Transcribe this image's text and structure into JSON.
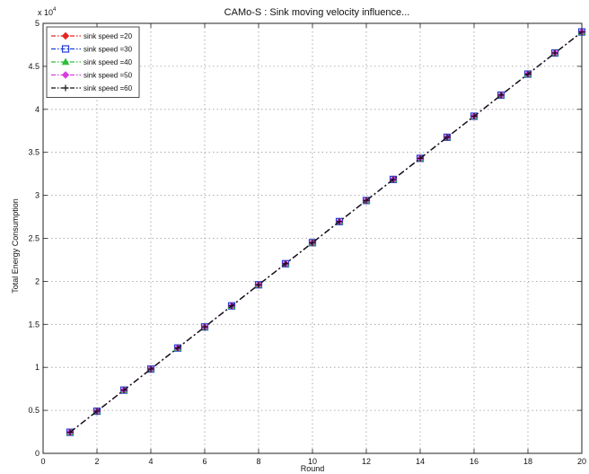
{
  "chart_data": {
    "type": "line",
    "title": "CAMo-S : Sink moving velocity influence...",
    "xlabel": "Round",
    "ylabel": "Total Energy Consumption",
    "y_multiplier": "x 10",
    "y_exponent": "4",
    "xlim": [
      0,
      20
    ],
    "ylim": [
      0,
      5
    ],
    "x_ticks": [
      0,
      2,
      4,
      6,
      8,
      10,
      12,
      14,
      16,
      18,
      20
    ],
    "y_ticks": [
      0,
      0.5,
      1,
      1.5,
      2,
      2.5,
      3,
      3.5,
      4,
      4.5,
      5
    ],
    "y_tick_labels": [
      "0",
      "0.5",
      "1",
      "1.5",
      "2",
      "2.5",
      "3",
      "3.5",
      "4",
      "4.5",
      "5"
    ],
    "grid": true,
    "legend_position": "top-left",
    "x": [
      1,
      2,
      3,
      4,
      5,
      6,
      7,
      8,
      9,
      10,
      11,
      12,
      13,
      14,
      15,
      16,
      17,
      18,
      19,
      20
    ],
    "series": [
      {
        "name": "sink speed =20",
        "color": "#e8251f",
        "marker": "diamond",
        "dash": "dash-dot",
        "values": [
          0.245,
          0.49,
          0.735,
          0.98,
          1.225,
          1.47,
          1.715,
          1.96,
          2.205,
          2.45,
          2.695,
          2.94,
          3.185,
          3.43,
          3.675,
          3.92,
          4.165,
          4.41,
          4.655,
          4.9
        ]
      },
      {
        "name": "sink speed =30",
        "color": "#1f3ed8",
        "marker": "square",
        "dash": "dash-dot",
        "values": [
          0.245,
          0.49,
          0.735,
          0.98,
          1.225,
          1.47,
          1.715,
          1.96,
          2.205,
          2.45,
          2.695,
          2.94,
          3.185,
          3.43,
          3.675,
          3.92,
          4.165,
          4.41,
          4.655,
          4.9
        ]
      },
      {
        "name": "sink speed =40",
        "color": "#2fbf3a",
        "marker": "triangle",
        "dash": "dash-dot",
        "values": [
          0.245,
          0.49,
          0.735,
          0.98,
          1.225,
          1.47,
          1.715,
          1.96,
          2.205,
          2.45,
          2.695,
          2.94,
          3.185,
          3.43,
          3.675,
          3.92,
          4.165,
          4.41,
          4.655,
          4.9
        ]
      },
      {
        "name": "sink speed =50",
        "color": "#d63ee0",
        "marker": "diamond",
        "dash": "dash-dot",
        "values": [
          0.245,
          0.49,
          0.735,
          0.98,
          1.225,
          1.47,
          1.715,
          1.96,
          2.205,
          2.45,
          2.695,
          2.94,
          3.185,
          3.43,
          3.675,
          3.92,
          4.165,
          4.41,
          4.655,
          4.9
        ]
      },
      {
        "name": "sink speed =60",
        "color": "#111111",
        "marker": "plus",
        "dash": "dash-dot",
        "values": [
          0.245,
          0.49,
          0.735,
          0.98,
          1.225,
          1.47,
          1.715,
          1.96,
          2.205,
          2.45,
          2.695,
          2.94,
          3.185,
          3.43,
          3.675,
          3.92,
          4.165,
          4.41,
          4.655,
          4.9
        ]
      }
    ]
  }
}
